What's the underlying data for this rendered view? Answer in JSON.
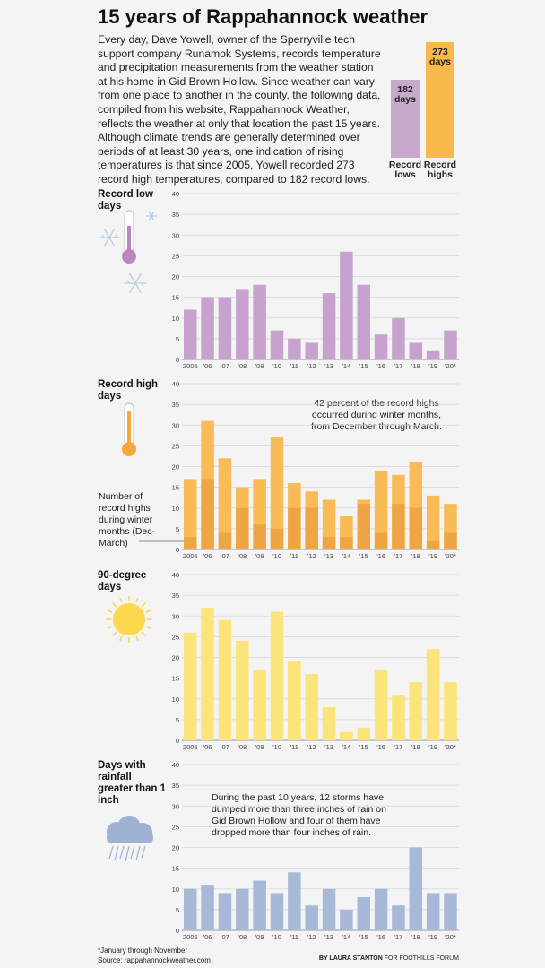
{
  "title": "15 years of Rappahannock weather",
  "intro": "Every day, Dave Yowell, owner of the Sperryville tech support company Runamok Systems, records temperature and precipitation measurements from the weather station at his home in Gid Brown Hollow. Since weather can vary from one place to another in the county, the following data, compiled from his website, Rappahannock Weather, reflects the weather at only that location the past 15 years. Although climate trends are generally determined over periods of at least 30 years, one indication of rising temperatures is that since 2005, Yowell recorded 273 record high temperatures, compared to 182 record lows.",
  "summary": {
    "lows_value": "182 days",
    "highs_value": "273 days",
    "lows_label": "Record lows",
    "highs_label": "Record highs",
    "lows_color": "#c7a9cc",
    "highs_color": "#f9b84a"
  },
  "icons": {
    "low": "thermometer-cold-icon",
    "high": "thermometer-hot-icon",
    "heat": "sun-icon",
    "rain": "rain-cloud-icon"
  },
  "chart_data": [
    {
      "type": "bar",
      "title": "Record low days",
      "categories": [
        "2005",
        "'06",
        "'07",
        "'08",
        "'09",
        "'10",
        "'11",
        "'12",
        "'13",
        "'14",
        "'15",
        "'16",
        "'17",
        "'18",
        "'19",
        "'20*"
      ],
      "series": [
        {
          "values": [
            12,
            15,
            15,
            17,
            18,
            7,
            5,
            4,
            16,
            26,
            18,
            6,
            10,
            4,
            2,
            7
          ]
        }
      ],
      "ylim": [
        0,
        40
      ],
      "yticks": [
        0,
        5,
        10,
        15,
        20,
        25,
        30,
        35,
        40
      ],
      "color": "#c7a2cf"
    },
    {
      "type": "bar",
      "title": "Record high days",
      "categories": [
        "2005",
        "'06",
        "'07",
        "'08",
        "'09",
        "'10",
        "'11",
        "'12",
        "'13",
        "'14",
        "'15",
        "'16",
        "'17",
        "'18",
        "'19",
        "'20*"
      ],
      "series": [
        {
          "values": [
            17,
            31,
            22,
            15,
            17,
            27,
            16,
            14,
            12,
            8,
            12,
            19,
            18,
            21,
            13,
            11
          ]
        },
        {
          "name": "Number of record highs during winter months (Dec-March)",
          "values": [
            3,
            17,
            4,
            10,
            6,
            5,
            10,
            10,
            3,
            3,
            11,
            4,
            11,
            10,
            2,
            4
          ]
        }
      ],
      "ylim": [
        0,
        40
      ],
      "yticks": [
        0,
        5,
        10,
        15,
        20,
        25,
        30,
        35,
        40
      ],
      "colors": [
        "#f9bb55",
        "#f0a544"
      ],
      "annotation": "42 percent of the record highs occurred during winter months, from December through March."
    },
    {
      "type": "bar",
      "title": "90-degree days",
      "categories": [
        "2005",
        "'06",
        "'07",
        "'08",
        "'09",
        "'10",
        "'11",
        "'12",
        "'13",
        "'14",
        "'15",
        "'16",
        "'17",
        "'18",
        "'19",
        "'20*"
      ],
      "series": [
        {
          "values": [
            26,
            32,
            29,
            24,
            17,
            31,
            19,
            16,
            8,
            2,
            3,
            17,
            11,
            14,
            22,
            14
          ]
        }
      ],
      "ylim": [
        0,
        40
      ],
      "yticks": [
        0,
        5,
        10,
        15,
        20,
        25,
        30,
        35,
        40
      ],
      "color": "#fbe47a"
    },
    {
      "type": "bar",
      "title": "Days with rainfall greater than 1 inch",
      "categories": [
        "2005",
        "'06",
        "'07",
        "'08",
        "'09",
        "'10",
        "'11",
        "'12",
        "'13",
        "'14",
        "'15",
        "'16",
        "'17",
        "'18",
        "'19",
        "'20*"
      ],
      "series": [
        {
          "values": [
            10,
            11,
            9,
            10,
            12,
            9,
            14,
            6,
            10,
            5,
            8,
            10,
            6,
            20,
            9,
            9
          ]
        }
      ],
      "ylim": [
        0,
        40
      ],
      "yticks": [
        0,
        5,
        10,
        15,
        20,
        25,
        30,
        35,
        40
      ],
      "color": "#a8b9d8",
      "annotation": "During the past 10 years, 12 storms have dumped more than three inches of rain on Gid Brown Hollow and four of them have dropped more than four inches of rain."
    }
  ],
  "footnote": "*January through November",
  "source": "Source: rappahannockweather.com",
  "credit_by": "BY LAURA STANTON",
  "credit_for": "FOR FOOTHILLS FORUM"
}
